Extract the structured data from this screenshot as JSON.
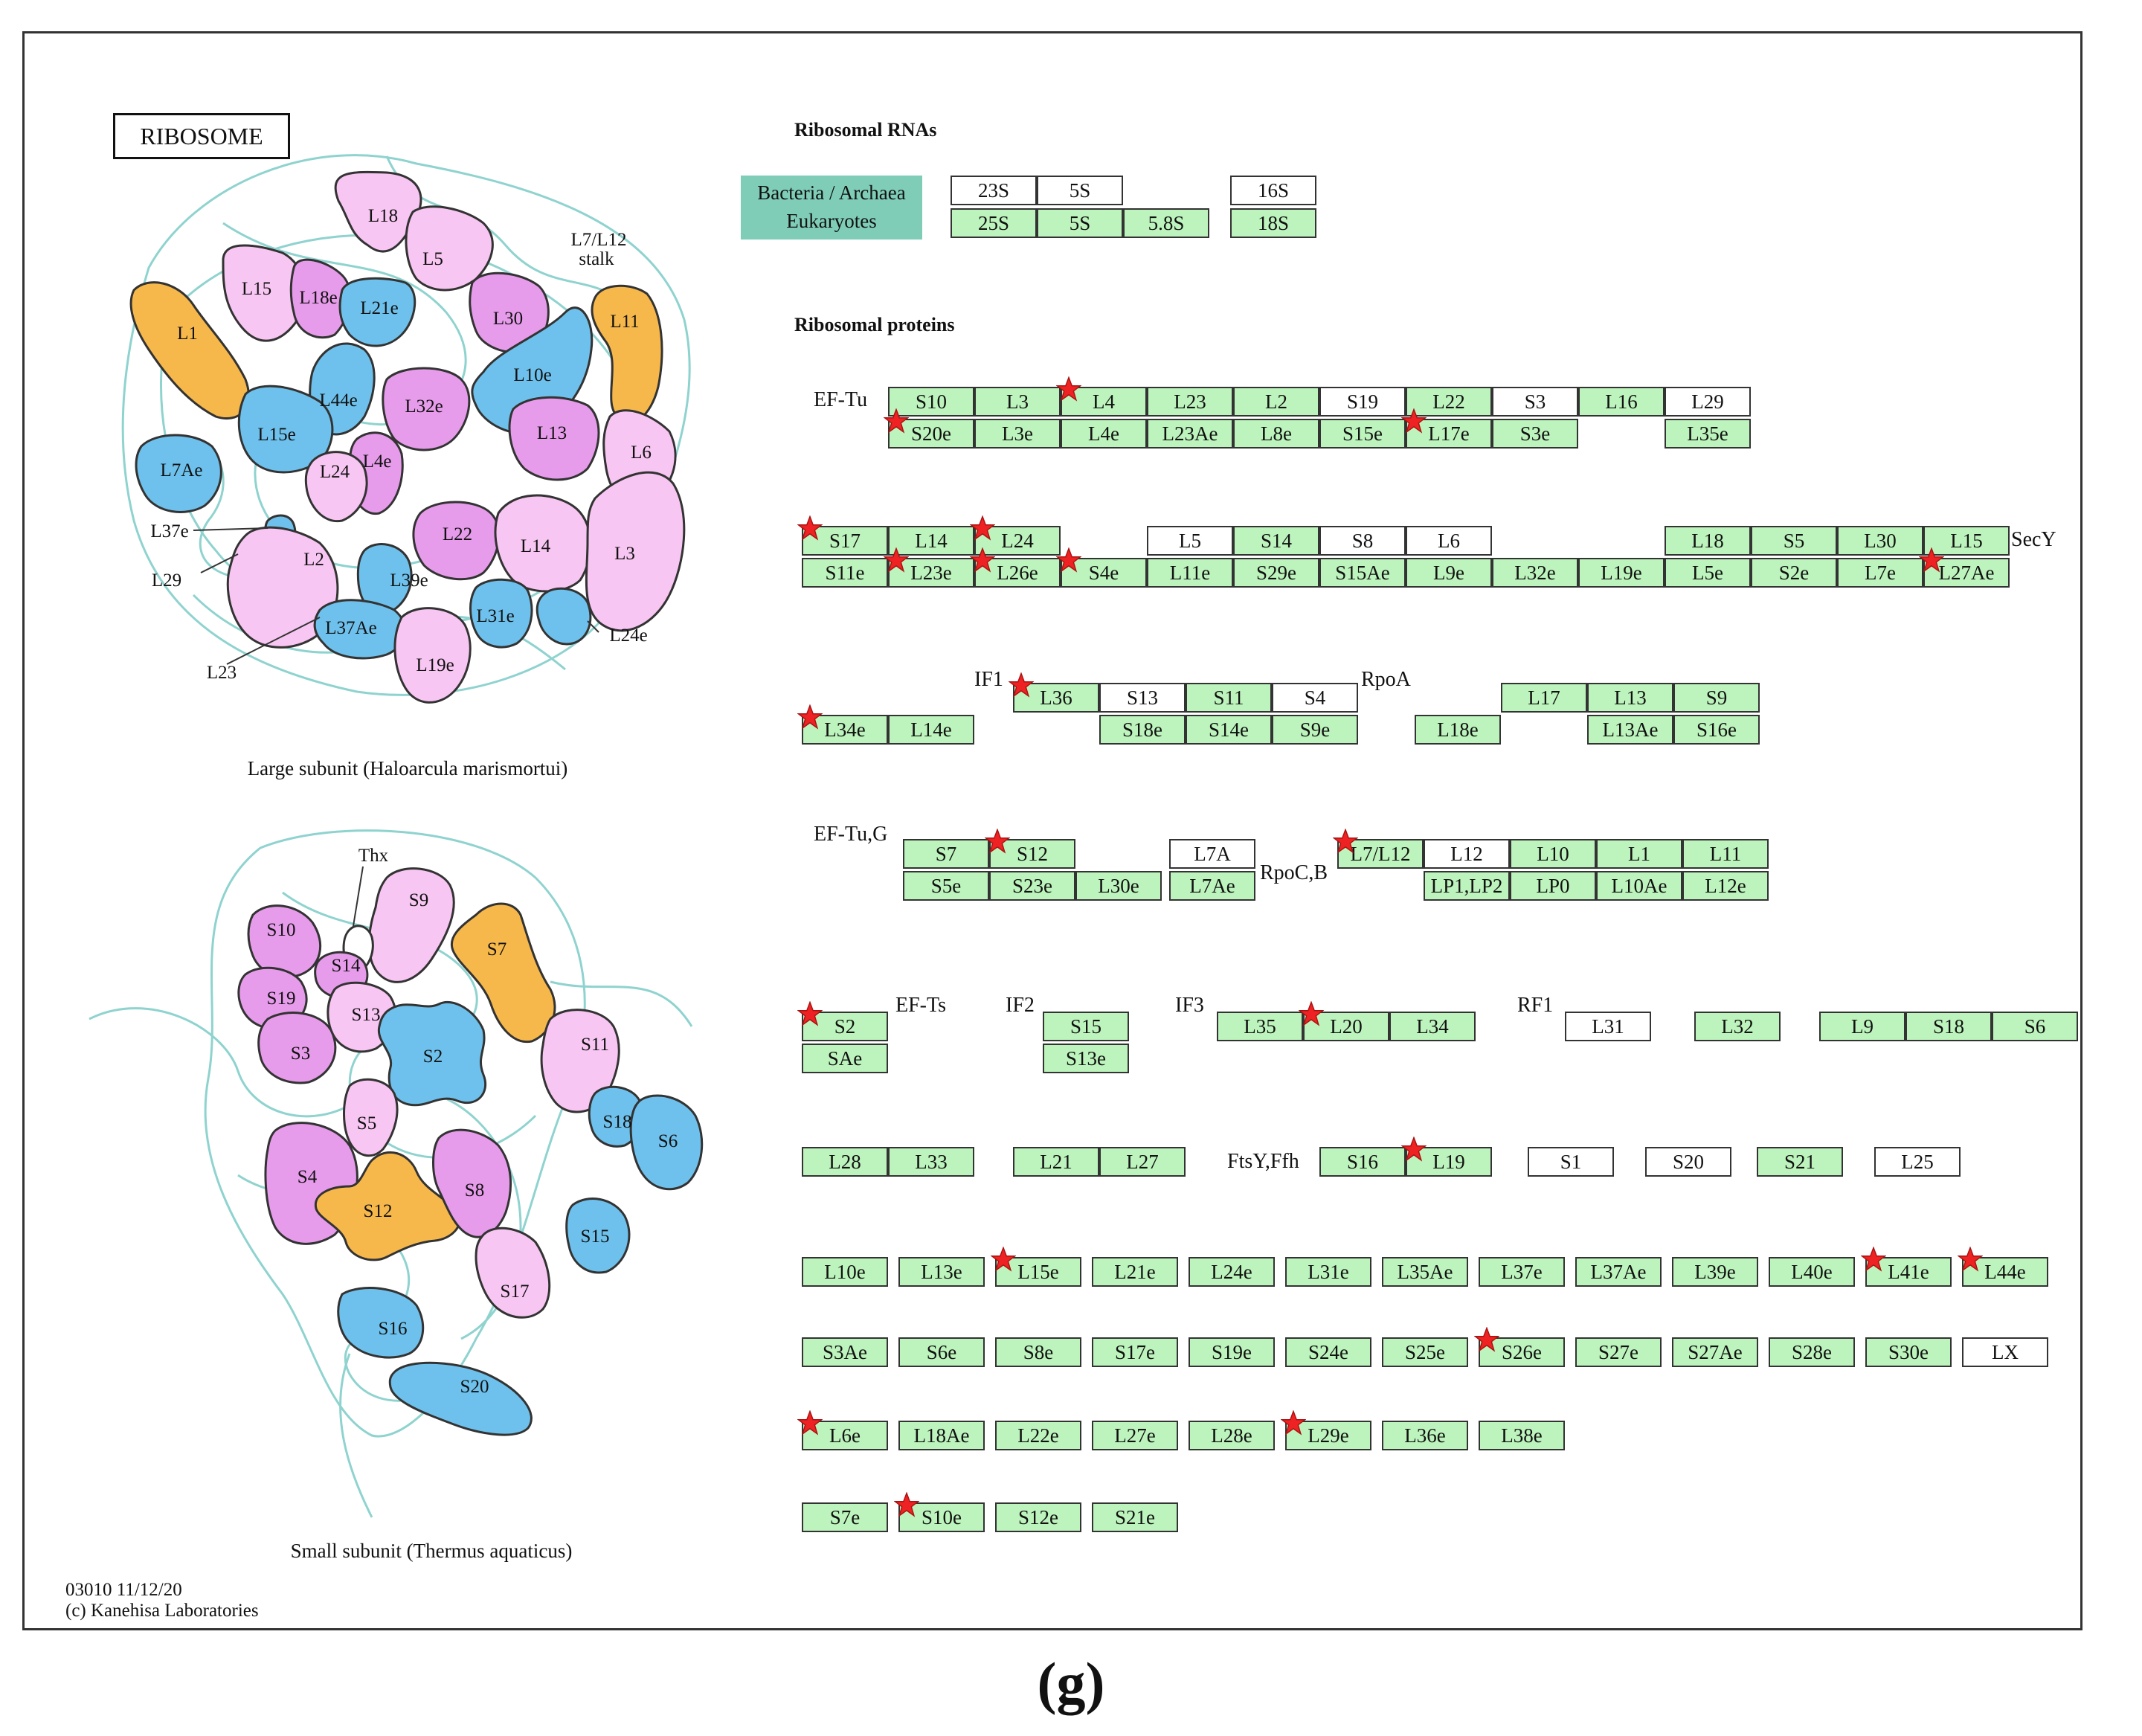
{
  "figure_label": "(g)",
  "pathway": {
    "title": "RIBOSOME",
    "map_id_date": "03010 11/12/20",
    "copyright": "(c) Kanehisa Laboratories"
  },
  "colors": {
    "gene_found": "#bdf4bd",
    "gene_absent": "#ffffff",
    "legend_fill": "#7fcdb7",
    "marker": "#ee2222",
    "orange": "#f7b84b",
    "blue": "#6ec1ec",
    "pink": "#f8c6f3",
    "magenta": "#e79ceb",
    "rna_strand": "#8fd3cf"
  },
  "large_subunit": {
    "caption": "Large subunit (Haloarcula marismortui)",
    "labels": [
      "L18",
      "L5",
      "L7/L12",
      "stalk",
      "L15",
      "L18e",
      "L21e",
      "L30",
      "L11",
      "L1",
      "L10e",
      "L44e",
      "L32e",
      "L13",
      "L6",
      "L15e",
      "L4e",
      "L7Ae",
      "L24",
      "L37e",
      "L22",
      "L14",
      "L3",
      "L2",
      "L29",
      "L39e",
      "L31e",
      "L37Ae",
      "L24e",
      "L19e",
      "L23"
    ]
  },
  "small_subunit": {
    "caption": "Small subunit (Thermus aquaticus)",
    "labels": [
      "Thx",
      "S9",
      "S10",
      "S14",
      "S7",
      "S19",
      "S13",
      "S3",
      "S2",
      "S11",
      "S18",
      "S6",
      "S5",
      "S4",
      "S12",
      "S8",
      "S15",
      "S17",
      "S16",
      "S20"
    ]
  },
  "rna": {
    "header": "Ribosomal RNAs",
    "legend_line1": "Bacteria / Archaea",
    "legend_line2": "Eukaryotes",
    "boxes": [
      {
        "t": "23S",
        "w": false
      },
      {
        "t": "5S",
        "w": false
      },
      {
        "t": "16S",
        "w": false
      },
      {
        "t": "25S",
        "w": true
      },
      {
        "t": "5S",
        "w": true
      },
      {
        "t": "5.8S",
        "w": true
      },
      {
        "t": "18S",
        "w": true
      }
    ]
  },
  "proteins": {
    "header": "Ribosomal proteins",
    "labels": [
      "EF-Tu",
      "SecY",
      "IF1",
      "RpoA",
      "EF-Tu,G",
      "RpoC,B",
      "EF-Ts",
      "IF2",
      "IF3",
      "RF1",
      "FtsY,Ffh"
    ],
    "genes": [
      {
        "t": "S10",
        "g": true
      },
      {
        "t": "L3",
        "g": true
      },
      {
        "t": "L4",
        "g": true,
        "s": true
      },
      {
        "t": "L23",
        "g": true
      },
      {
        "t": "L2",
        "g": true
      },
      {
        "t": "S19",
        "g": false
      },
      {
        "t": "L22",
        "g": true
      },
      {
        "t": "S3",
        "g": false
      },
      {
        "t": "L16",
        "g": true
      },
      {
        "t": "L29",
        "g": false
      },
      {
        "t": "S20e",
        "g": true,
        "s": true
      },
      {
        "t": "L3e",
        "g": true
      },
      {
        "t": "L4e",
        "g": true
      },
      {
        "t": "L23Ae",
        "g": true
      },
      {
        "t": "L8e",
        "g": true
      },
      {
        "t": "S15e",
        "g": true
      },
      {
        "t": "L17e",
        "g": true,
        "s": true
      },
      {
        "t": "S3e",
        "g": true
      },
      {
        "t": "L35e",
        "g": true
      },
      {
        "t": "S17",
        "g": true,
        "s": true
      },
      {
        "t": "L14",
        "g": true
      },
      {
        "t": "L24",
        "g": true,
        "s": true
      },
      {
        "t": "L5",
        "g": false
      },
      {
        "t": "S14",
        "g": true
      },
      {
        "t": "S8",
        "g": false
      },
      {
        "t": "L6",
        "g": false
      },
      {
        "t": "L18",
        "g": true
      },
      {
        "t": "S5",
        "g": true
      },
      {
        "t": "L30",
        "g": true
      },
      {
        "t": "L15",
        "g": true
      },
      {
        "t": "S11e",
        "g": true
      },
      {
        "t": "L23e",
        "g": true,
        "s": true
      },
      {
        "t": "L26e",
        "g": true,
        "s": true
      },
      {
        "t": "S4e",
        "g": true,
        "s": true
      },
      {
        "t": "L11e",
        "g": true
      },
      {
        "t": "S29e",
        "g": true
      },
      {
        "t": "S15Ae",
        "g": true
      },
      {
        "t": "L9e",
        "g": true
      },
      {
        "t": "L32e",
        "g": true
      },
      {
        "t": "L19e",
        "g": true
      },
      {
        "t": "L5e",
        "g": true
      },
      {
        "t": "S2e",
        "g": true
      },
      {
        "t": "L7e",
        "g": true
      },
      {
        "t": "L27Ae",
        "g": true,
        "s": true
      },
      {
        "t": "L36",
        "g": true,
        "s": true
      },
      {
        "t": "S13",
        "g": false
      },
      {
        "t": "S11",
        "g": true
      },
      {
        "t": "S4",
        "g": false
      },
      {
        "t": "L17",
        "g": true
      },
      {
        "t": "L13",
        "g": true
      },
      {
        "t": "S9",
        "g": true
      },
      {
        "t": "L34e",
        "g": true,
        "s": true
      },
      {
        "t": "L14e",
        "g": true
      },
      {
        "t": "S18e",
        "g": true
      },
      {
        "t": "S14e",
        "g": true
      },
      {
        "t": "S9e",
        "g": true
      },
      {
        "t": "L18e",
        "g": true
      },
      {
        "t": "L13Ae",
        "g": true
      },
      {
        "t": "S16e",
        "g": true
      },
      {
        "t": "S7",
        "g": true
      },
      {
        "t": "S12",
        "g": true,
        "s": true
      },
      {
        "t": "L7A",
        "g": false
      },
      {
        "t": "L7/L12",
        "g": true,
        "s": true
      },
      {
        "t": "L12",
        "g": false
      },
      {
        "t": "L10",
        "g": true
      },
      {
        "t": "L1",
        "g": true
      },
      {
        "t": "L11",
        "g": true
      },
      {
        "t": "S5e",
        "g": true
      },
      {
        "t": "S23e",
        "g": true
      },
      {
        "t": "L30e",
        "g": true
      },
      {
        "t": "L7Ae",
        "g": true
      },
      {
        "t": "LP1,LP2",
        "g": true
      },
      {
        "t": "LP0",
        "g": true
      },
      {
        "t": "L10Ae",
        "g": true
      },
      {
        "t": "L12e",
        "g": true
      },
      {
        "t": "S2",
        "g": true,
        "s": true
      },
      {
        "t": "SAe",
        "g": true
      },
      {
        "t": "S15",
        "g": true
      },
      {
        "t": "S13e",
        "g": true
      },
      {
        "t": "L35",
        "g": true
      },
      {
        "t": "L20",
        "g": true,
        "s": true
      },
      {
        "t": "L34",
        "g": true
      },
      {
        "t": "L31",
        "g": false
      },
      {
        "t": "L32",
        "g": true
      },
      {
        "t": "L9",
        "g": true
      },
      {
        "t": "S18",
        "g": true
      },
      {
        "t": "S6",
        "g": true
      },
      {
        "t": "L28",
        "g": true
      },
      {
        "t": "L33",
        "g": true
      },
      {
        "t": "L21",
        "g": true
      },
      {
        "t": "L27",
        "g": true
      },
      {
        "t": "S16",
        "g": true
      },
      {
        "t": "L19",
        "g": true,
        "s": true
      },
      {
        "t": "S1",
        "g": false
      },
      {
        "t": "S20",
        "g": false
      },
      {
        "t": "S21",
        "g": true
      },
      {
        "t": "L25",
        "g": false
      },
      {
        "t": "L10e",
        "g": true
      },
      {
        "t": "L13e",
        "g": true
      },
      {
        "t": "L15e",
        "g": true,
        "s": true
      },
      {
        "t": "L21e",
        "g": true
      },
      {
        "t": "L24e",
        "g": true
      },
      {
        "t": "L31e",
        "g": true
      },
      {
        "t": "L35Ae",
        "g": true
      },
      {
        "t": "L37e",
        "g": true
      },
      {
        "t": "L37Ae",
        "g": true
      },
      {
        "t": "L39e",
        "g": true
      },
      {
        "t": "L40e",
        "g": true
      },
      {
        "t": "L41e",
        "g": true,
        "s": true
      },
      {
        "t": "L44e",
        "g": true,
        "s": true
      },
      {
        "t": "S3Ae",
        "g": true
      },
      {
        "t": "S6e",
        "g": true
      },
      {
        "t": "S8e",
        "g": true
      },
      {
        "t": "S17e",
        "g": true
      },
      {
        "t": "S19e",
        "g": true
      },
      {
        "t": "S24e",
        "g": true
      },
      {
        "t": "S25e",
        "g": true
      },
      {
        "t": "S26e",
        "g": true,
        "s": true
      },
      {
        "t": "S27e",
        "g": true
      },
      {
        "t": "S27Ae",
        "g": true
      },
      {
        "t": "S28e",
        "g": true
      },
      {
        "t": "S30e",
        "g": true
      },
      {
        "t": "LX",
        "g": false
      },
      {
        "t": "L6e",
        "g": true,
        "s": true
      },
      {
        "t": "L18Ae",
        "g": true
      },
      {
        "t": "L22e",
        "g": true
      },
      {
        "t": "L27e",
        "g": true
      },
      {
        "t": "L28e",
        "g": true
      },
      {
        "t": "L29e",
        "g": true,
        "s": true
      },
      {
        "t": "L36e",
        "g": true
      },
      {
        "t": "L38e",
        "g": true
      },
      {
        "t": "S7e",
        "g": true
      },
      {
        "t": "S10e",
        "g": true,
        "s": true
      },
      {
        "t": "S12e",
        "g": true
      },
      {
        "t": "S21e",
        "g": true
      }
    ]
  }
}
